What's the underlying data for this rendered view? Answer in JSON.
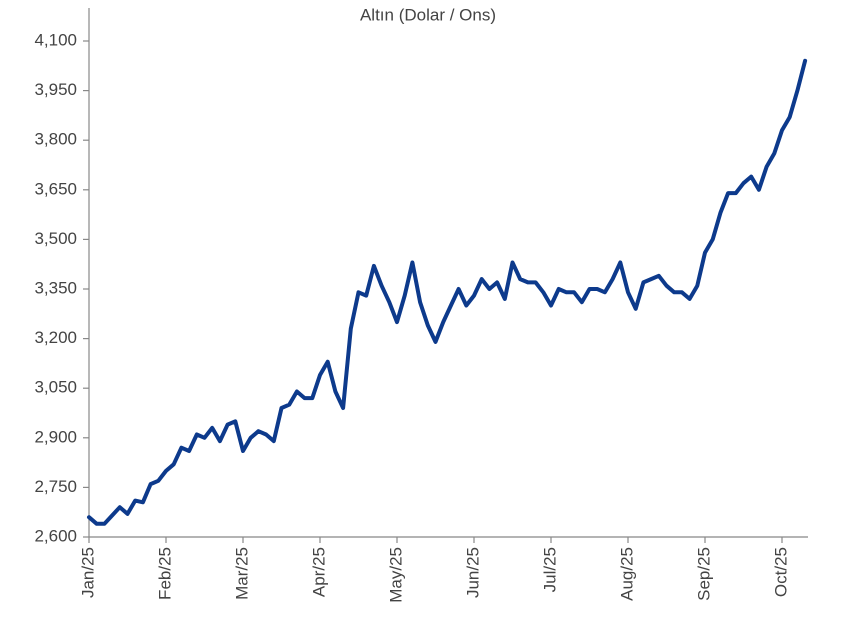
{
  "chart_data": {
    "type": "line",
    "title": "Altın (Dolar / Ons)",
    "categories": [
      "Jan/25",
      null,
      null,
      null,
      null,
      null,
      null,
      null,
      null,
      null,
      "Feb/25",
      null,
      null,
      null,
      null,
      null,
      null,
      null,
      null,
      null,
      "Mar/25",
      null,
      null,
      null,
      null,
      null,
      null,
      null,
      null,
      null,
      "Apr/25",
      null,
      null,
      null,
      null,
      null,
      null,
      null,
      null,
      null,
      "May/25",
      null,
      null,
      null,
      null,
      null,
      null,
      null,
      null,
      null,
      "Jun/25",
      null,
      null,
      null,
      null,
      null,
      null,
      null,
      null,
      null,
      "Jul/25",
      null,
      null,
      null,
      null,
      null,
      null,
      null,
      null,
      null,
      "Aug/25",
      null,
      null,
      null,
      null,
      null,
      null,
      null,
      null,
      null,
      "Sep/25",
      null,
      null,
      null,
      null,
      null,
      null,
      null,
      null,
      null,
      "Oct/25",
      null,
      null,
      null
    ],
    "series": [
      {
        "color": "#0d3a8c",
        "values": [
          2660,
          2640,
          2640,
          2665,
          2690,
          2670,
          2710,
          2705,
          2760,
          2770,
          2800,
          2820,
          2870,
          2860,
          2910,
          2900,
          2930,
          2890,
          2940,
          2950,
          2860,
          2900,
          2920,
          2910,
          2890,
          2990,
          3000,
          3040,
          3020,
          3020,
          3090,
          3130,
          3040,
          2990,
          3230,
          3340,
          3330,
          3420,
          3360,
          3310,
          3250,
          3330,
          3430,
          3310,
          3240,
          3190,
          3250,
          3300,
          3350,
          3300,
          3330,
          3380,
          3350,
          3370,
          3320,
          3430,
          3380,
          3370,
          3370,
          3340,
          3300,
          3350,
          3340,
          3340,
          3310,
          3350,
          3350,
          3340,
          3380,
          3430,
          3340,
          3290,
          3370,
          3380,
          3390,
          3360,
          3340,
          3340,
          3320,
          3360,
          3460,
          3500,
          3580,
          3640,
          3640,
          3670,
          3690,
          3650,
          3720,
          3760,
          3830,
          3870,
          3950,
          4040
        ]
      }
    ],
    "ylim": [
      2600,
      4250
    ],
    "yticks": [
      {
        "value": 2600,
        "label": "2,600"
      },
      {
        "value": 2750,
        "label": "2,750"
      },
      {
        "value": 2900,
        "label": "2,900"
      },
      {
        "value": 3050,
        "label": "3,050"
      },
      {
        "value": 3200,
        "label": "3,200"
      },
      {
        "value": 3350,
        "label": "3,350"
      },
      {
        "value": 3500,
        "label": "3,500"
      },
      {
        "value": 3650,
        "label": "3,650"
      },
      {
        "value": 3800,
        "label": "3,800"
      },
      {
        "value": 3950,
        "label": "3,950"
      },
      {
        "value": 4100,
        "label": "4,100"
      }
    ],
    "grid": false
  }
}
